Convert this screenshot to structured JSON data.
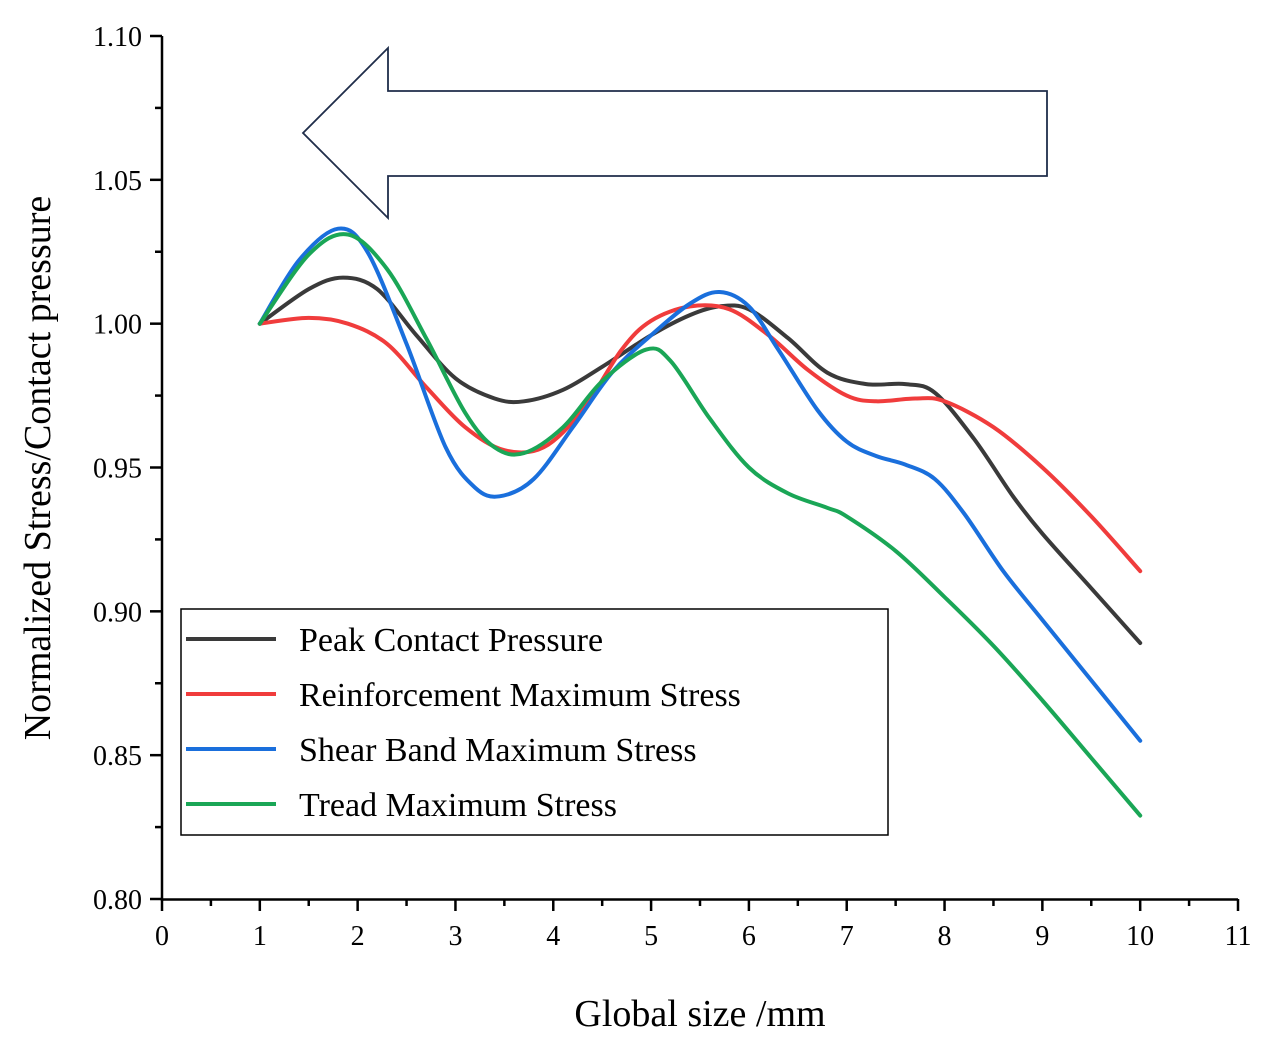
{
  "chart_data": {
    "type": "line",
    "xlabel": "Global size /mm",
    "ylabel": "Normalized Stress/Contact pressure",
    "xlim": [
      0,
      11
    ],
    "ylim": [
      0.8,
      1.1
    ],
    "xticks": [
      "0",
      "1",
      "2",
      "3",
      "4",
      "5",
      "6",
      "7",
      "8",
      "9",
      "10",
      "11"
    ],
    "yticks": [
      "0.80",
      "0.85",
      "0.90",
      "0.95",
      "1.00",
      "1.05",
      "1.10"
    ],
    "legend_position": "bottom-left",
    "series": [
      {
        "name": "Peak Contact Pressure",
        "color": "#3a3a3a",
        "x": [
          1,
          1.5,
          1.85,
          2.2,
          2.6,
          3.0,
          3.4,
          3.7,
          4.1,
          4.5,
          5.0,
          5.4,
          5.7,
          6.0,
          6.4,
          6.8,
          7.2,
          7.6,
          7.9,
          8.3,
          8.7,
          9.0,
          9.5,
          10.0
        ],
        "y": [
          1.0,
          1.012,
          1.016,
          1.012,
          0.996,
          0.981,
          0.974,
          0.973,
          0.977,
          0.985,
          0.996,
          1.003,
          1.006,
          1.005,
          0.995,
          0.983,
          0.979,
          0.979,
          0.976,
          0.96,
          0.94,
          0.927,
          0.908,
          0.889
        ]
      },
      {
        "name": "Reinforcement Maximum Stress",
        "color": "#f03c3c",
        "x": [
          1,
          1.5,
          1.9,
          2.3,
          2.7,
          3.1,
          3.5,
          3.9,
          4.3,
          4.7,
          5.0,
          5.4,
          5.8,
          6.2,
          6.6,
          7.0,
          7.3,
          7.7,
          8.0,
          8.5,
          9.0,
          9.5,
          10.0
        ],
        "y": [
          1.0,
          1.002,
          1.0,
          0.993,
          0.978,
          0.964,
          0.956,
          0.957,
          0.97,
          0.991,
          1.001,
          1.006,
          1.005,
          0.996,
          0.984,
          0.975,
          0.973,
          0.974,
          0.973,
          0.964,
          0.95,
          0.933,
          0.914
        ]
      },
      {
        "name": "Shear Band Maximum Stress",
        "color": "#1a6fdc",
        "x": [
          1,
          1.4,
          1.8,
          2.1,
          2.5,
          2.9,
          3.2,
          3.45,
          3.8,
          4.2,
          4.6,
          5.0,
          5.4,
          5.7,
          6.0,
          6.3,
          6.7,
          7.0,
          7.3,
          7.6,
          7.9,
          8.2,
          8.6,
          9.0,
          9.5,
          10.0
        ],
        "y": [
          1.0,
          1.022,
          1.033,
          1.025,
          0.993,
          0.957,
          0.943,
          0.94,
          0.946,
          0.964,
          0.983,
          0.996,
          1.007,
          1.011,
          1.006,
          0.991,
          0.97,
          0.959,
          0.954,
          0.951,
          0.946,
          0.934,
          0.914,
          0.897,
          0.876,
          0.855
        ]
      },
      {
        "name": "Tread Maximum Stress",
        "color": "#1aa656",
        "x": [
          1,
          1.5,
          1.9,
          2.3,
          2.7,
          3.1,
          3.4,
          3.7,
          4.1,
          4.5,
          4.95,
          5.2,
          5.6,
          6.0,
          6.4,
          6.8,
          7.0,
          7.5,
          8.0,
          8.5,
          9.0,
          9.5,
          10.0
        ],
        "y": [
          1.0,
          1.024,
          1.031,
          1.019,
          0.995,
          0.969,
          0.957,
          0.955,
          0.964,
          0.98,
          0.991,
          0.987,
          0.967,
          0.95,
          0.941,
          0.936,
          0.933,
          0.921,
          0.905,
          0.888,
          0.869,
          0.849,
          0.829
        ]
      }
    ],
    "annotation": "left-pointing arrow (decreasing global size)"
  }
}
